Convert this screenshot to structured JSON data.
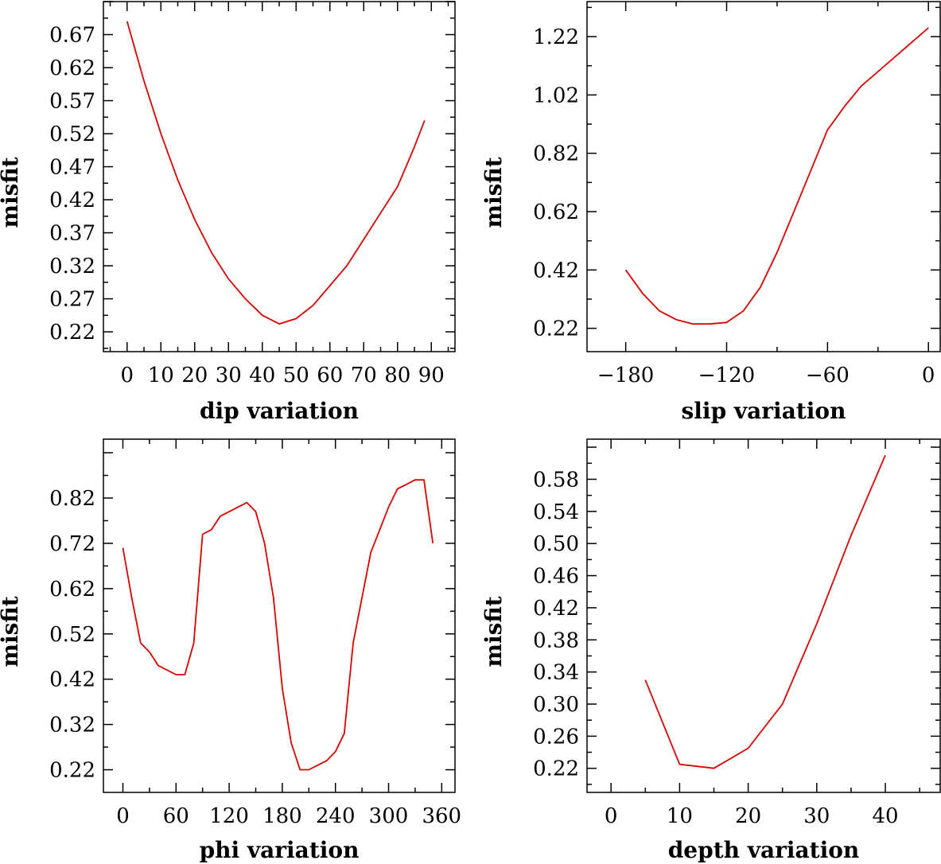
{
  "chart_data": [
    {
      "type": "line",
      "xlabel": "dip    variation",
      "ylabel": "misfit",
      "xlim": [
        -7,
        97
      ],
      "ylim": [
        0.19,
        0.72
      ],
      "xticks": [
        0,
        10,
        20,
        30,
        40,
        50,
        60,
        70,
        80,
        90
      ],
      "xtick_labels": [
        "0",
        "10",
        "20",
        "30",
        "40",
        "50",
        "60",
        "70",
        "80",
        "90"
      ],
      "yticks": [
        0.22,
        0.27,
        0.32,
        0.37,
        0.42,
        0.47,
        0.52,
        0.57,
        0.62,
        0.67
      ],
      "ytick_labels": [
        "0.22",
        "0.27",
        "0.32",
        "0.37",
        "0.42",
        "0.47",
        "0.52",
        "0.57",
        "0.62",
        "0.67"
      ],
      "series": [
        {
          "color": "#dd0000",
          "x": [
            0,
            5,
            10,
            15,
            20,
            25,
            30,
            35,
            40,
            45,
            50,
            55,
            60,
            65,
            70,
            75,
            80,
            85,
            88
          ],
          "y": [
            0.69,
            0.6,
            0.52,
            0.45,
            0.39,
            0.34,
            0.3,
            0.27,
            0.245,
            0.232,
            0.24,
            0.26,
            0.29,
            0.32,
            0.36,
            0.4,
            0.44,
            0.5,
            0.54
          ]
        }
      ]
    },
    {
      "type": "line",
      "xlabel": "slip    variation",
      "ylabel": "misfit",
      "xlim": [
        -203,
        7
      ],
      "ylim": [
        0.14,
        1.34
      ],
      "xticks": [
        -180,
        -120,
        -60,
        0
      ],
      "xtick_labels": [
        "−180",
        "−120",
        "−60",
        "0"
      ],
      "yticks": [
        0.22,
        0.42,
        0.62,
        0.82,
        1.02,
        1.22
      ],
      "ytick_labels": [
        "0.22",
        "0.42",
        "0.62",
        "0.82",
        "1.02",
        "1.22"
      ],
      "series": [
        {
          "color": "#dd0000",
          "x": [
            -180,
            -170,
            -160,
            -150,
            -140,
            -130,
            -120,
            -110,
            -100,
            -90,
            -80,
            -70,
            -60,
            -50,
            -40,
            -30,
            -20,
            -10,
            0
          ],
          "y": [
            0.42,
            0.34,
            0.28,
            0.25,
            0.235,
            0.235,
            0.24,
            0.28,
            0.36,
            0.48,
            0.62,
            0.76,
            0.9,
            0.98,
            1.05,
            1.1,
            1.15,
            1.2,
            1.25
          ]
        }
      ]
    },
    {
      "type": "line",
      "xlabel": "phi    variation",
      "ylabel": "misfit",
      "xlim": [
        -22,
        375
      ],
      "ylim": [
        0.17,
        0.95
      ],
      "xticks": [
        0,
        60,
        120,
        180,
        240,
        300,
        360
      ],
      "xtick_labels": [
        "0",
        "60",
        "120",
        "180",
        "240",
        "300",
        "360"
      ],
      "yticks": [
        0.22,
        0.32,
        0.42,
        0.52,
        0.62,
        0.72,
        0.82
      ],
      "ytick_labels": [
        "0.22",
        "0.32",
        "0.42",
        "0.52",
        "0.62",
        "0.72",
        "0.82"
      ],
      "series": [
        {
          "color": "#dd0000",
          "x": [
            0,
            10,
            20,
            30,
            40,
            50,
            60,
            70,
            80,
            90,
            100,
            110,
            120,
            130,
            140,
            150,
            160,
            170,
            180,
            190,
            200,
            210,
            220,
            230,
            240,
            250,
            260,
            270,
            280,
            290,
            300,
            310,
            320,
            330,
            340,
            350
          ],
          "y": [
            0.71,
            0.6,
            0.5,
            0.48,
            0.45,
            0.44,
            0.43,
            0.43,
            0.5,
            0.74,
            0.75,
            0.78,
            0.79,
            0.8,
            0.81,
            0.79,
            0.72,
            0.6,
            0.4,
            0.28,
            0.22,
            0.22,
            0.23,
            0.24,
            0.26,
            0.3,
            0.5,
            0.6,
            0.7,
            0.75,
            0.8,
            0.84,
            0.85,
            0.86,
            0.86,
            0.72
          ]
        }
      ]
    },
    {
      "type": "line",
      "xlabel": "depth   variation",
      "ylabel": "misfit",
      "xlim": [
        -3.5,
        48
      ],
      "ylim": [
        0.19,
        0.63
      ],
      "xticks": [
        0,
        10,
        20,
        30,
        40
      ],
      "xtick_labels": [
        "0",
        "10",
        "20",
        "30",
        "40"
      ],
      "yticks": [
        0.22,
        0.26,
        0.3,
        0.34,
        0.38,
        0.42,
        0.46,
        0.5,
        0.54,
        0.58
      ],
      "ytick_labels": [
        "0.22",
        "0.26",
        "0.30",
        "0.34",
        "0.38",
        "0.42",
        "0.46",
        "0.50",
        "0.54",
        "0.58"
      ],
      "series": [
        {
          "color": "#dd0000",
          "x": [
            5,
            10,
            15,
            20,
            25,
            30,
            35,
            40
          ],
          "y": [
            0.33,
            0.225,
            0.22,
            0.245,
            0.3,
            0.4,
            0.51,
            0.61
          ]
        }
      ]
    }
  ]
}
